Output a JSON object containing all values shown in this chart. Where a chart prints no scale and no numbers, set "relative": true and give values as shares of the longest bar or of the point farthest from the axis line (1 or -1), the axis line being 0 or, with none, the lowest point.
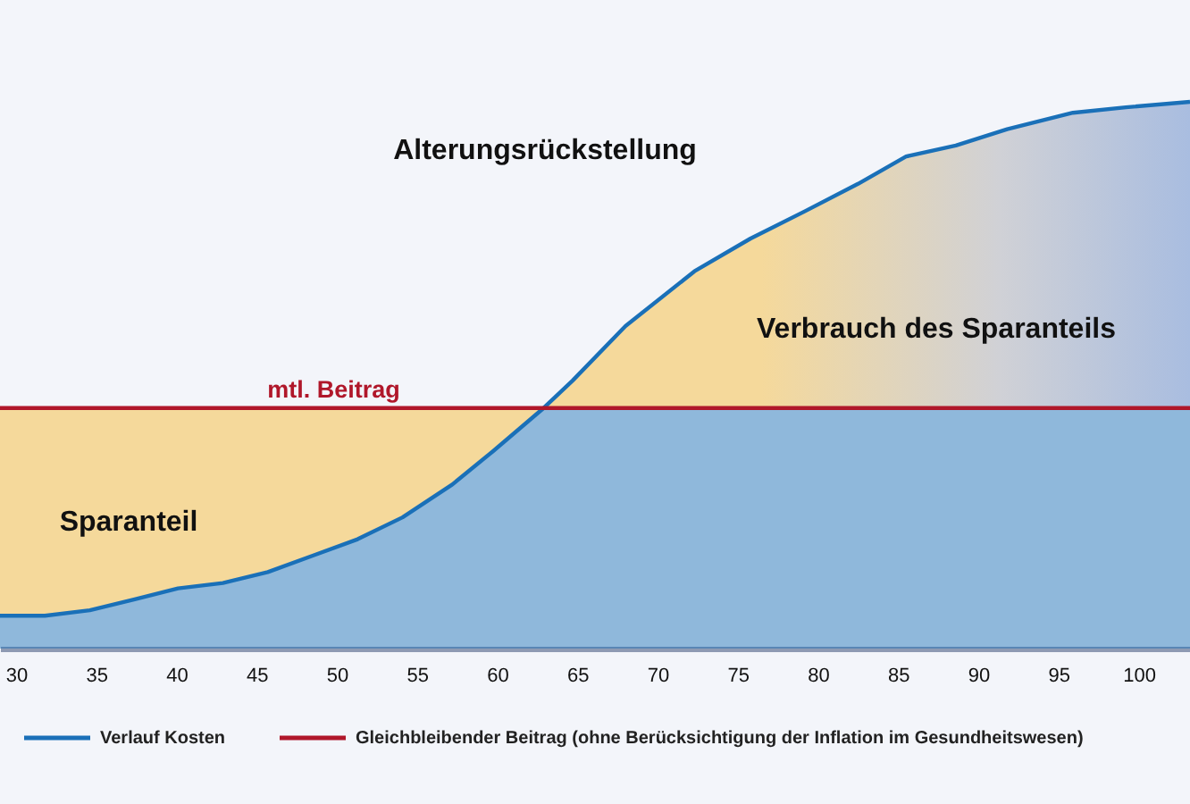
{
  "chart_data": {
    "type": "area",
    "relative": true,
    "x": [
      29.0,
      31.8,
      34.6,
      37.4,
      40.1,
      42.9,
      45.7,
      48.5,
      51.3,
      54.1,
      57.2,
      59.7,
      62.9,
      64.7,
      68.0,
      72.3,
      75.8,
      79.2,
      82.5,
      85.5,
      88.6,
      91.8,
      95.9,
      99.2,
      103.2
    ],
    "xlim": [
      29,
      103.2
    ],
    "xticks": [
      30,
      35,
      40,
      45,
      50,
      55,
      60,
      65,
      70,
      75,
      80,
      85,
      90,
      95,
      100
    ],
    "series": [
      {
        "name": "Verlauf Kosten",
        "color": "#1a70b8",
        "values": [
          0.06,
          0.06,
          0.07,
          0.09,
          0.11,
          0.12,
          0.14,
          0.17,
          0.2,
          0.24,
          0.3,
          0.36,
          0.44,
          0.49,
          0.59,
          0.69,
          0.75,
          0.8,
          0.85,
          0.9,
          0.92,
          0.95,
          0.98,
          0.99,
          1
        ]
      },
      {
        "name": "Gleichbleibender Beitrag (ohne Berücksichtigung der Inflation im Gesundheitswesen)",
        "type": "line",
        "color": "#b0172a",
        "values": [
          0.44,
          0.44,
          0.44,
          0.44,
          0.44,
          0.44,
          0.44,
          0.44,
          0.44,
          0.44,
          0.44,
          0.44,
          0.44,
          0.44,
          0.44,
          0.44,
          0.44,
          0.44,
          0.44,
          0.44,
          0.44,
          0.44,
          0.44,
          0.44,
          0.44
        ],
        "lower": [
          0.06,
          0.06,
          0.07,
          0.09,
          0.11,
          0.12,
          0.14,
          0.17,
          0.2,
          0.24,
          0.3,
          0.36,
          0.44,
          0.44,
          0.44,
          0.44,
          0.44,
          0.44,
          0.44,
          0.44,
          0.44,
          0.44,
          0.44,
          0.44,
          0.44
        ],
        "upper": [
          0.44,
          0.44,
          0.44,
          0.44,
          0.44,
          0.44,
          0.44,
          0.44,
          0.44,
          0.44,
          0.44,
          0.44,
          0.44,
          0.49,
          0.59,
          0.69,
          0.75,
          0.8,
          0.85,
          0.9,
          0.92,
          0.95,
          0.98,
          0.99,
          1
        ]
      }
    ],
    "annotations": [
      "Alterungsrückstellung",
      {
        "text": "mtl. Beitrag",
        "x": 49.8,
        "y": 0.44
      },
      "Verbrauch des Sparanteils",
      "Sparanteil"
    ],
    "legend": "bottom left",
    "grid": false,
    "tick_labels": "x"
  }
}
